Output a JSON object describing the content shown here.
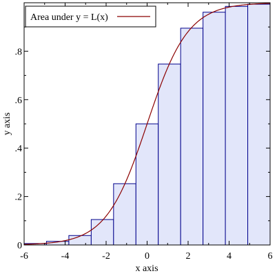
{
  "chart_data": {
    "type": "bar",
    "xlabel": "x axis",
    "ylabel": "y axis",
    "xlim": [
      -6,
      6
    ],
    "ylim": [
      0,
      1
    ],
    "x_ticks": [
      {
        "v": -6,
        "label": "-6"
      },
      {
        "v": -4,
        "label": "-4"
      },
      {
        "v": -2,
        "label": "-2"
      },
      {
        "v": 0,
        "label": "0"
      },
      {
        "v": 2,
        "label": "2"
      },
      {
        "v": 4,
        "label": "4"
      },
      {
        "v": 6,
        "label": "6"
      }
    ],
    "x_minor_ticks": [
      -5,
      -3,
      -1,
      1,
      3,
      5
    ],
    "y_ticks": [
      {
        "v": 0,
        "label": "0"
      },
      {
        "v": 0.2,
        "label": ".2"
      },
      {
        "v": 0.4,
        "label": ".4"
      },
      {
        "v": 0.6,
        "label": ".6"
      },
      {
        "v": 0.8,
        "label": ".8"
      }
    ],
    "y_minor_ticks": [
      0.1,
      0.3,
      0.5,
      0.7,
      0.9
    ],
    "bins": [
      {
        "x0": -6,
        "x1": -4.909,
        "y": 0.006
      },
      {
        "x0": -4.909,
        "x1": -3.818,
        "y": 0.015
      },
      {
        "x0": -3.818,
        "x1": -2.727,
        "y": 0.039
      },
      {
        "x0": -2.727,
        "x1": -1.636,
        "y": 0.105
      },
      {
        "x0": -1.636,
        "x1": -0.545,
        "y": 0.253
      },
      {
        "x0": -0.545,
        "x1": 0.545,
        "y": 0.5
      },
      {
        "x0": 0.545,
        "x1": 1.636,
        "y": 0.747
      },
      {
        "x0": 1.636,
        "x1": 2.727,
        "y": 0.895
      },
      {
        "x0": 2.727,
        "x1": 3.818,
        "y": 0.961
      },
      {
        "x0": 3.818,
        "x1": 4.909,
        "y": 0.985
      },
      {
        "x0": 4.909,
        "x1": 6,
        "y": 0.994
      }
    ],
    "series": [
      {
        "name": "Area under y = L(x)",
        "function": "logistic",
        "color": "#8b0000"
      }
    ],
    "bar_fill": "#e2e6fa",
    "bar_stroke": "#00008b",
    "legend_position": "top-left"
  }
}
